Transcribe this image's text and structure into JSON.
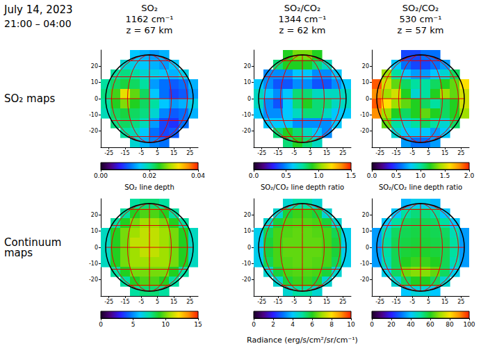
{
  "title": "July 14, 2023",
  "subtitle": "21:00 – 04:00",
  "row_labels": [
    "SO₂ maps",
    "Continuum maps"
  ],
  "colorbar_label": "Radiance (erg/s/cm²/sr/cm⁻¹)",
  "chart_data": [
    {
      "type": "heatmap",
      "header": [
        "SO₂",
        "1162 cm⁻¹",
        "z = 67 km"
      ],
      "xlim": [
        -30,
        30
      ],
      "xticks": [
        -25,
        -15,
        -5,
        5,
        15,
        25
      ],
      "ylim": [
        -30,
        30
      ],
      "yticks": [
        -20,
        -10,
        0,
        10,
        20
      ],
      "x": [
        -27,
        -21,
        -15,
        -9,
        -3,
        3,
        9,
        15,
        21,
        27
      ],
      "y": [
        27,
        21,
        15,
        9,
        3,
        -3,
        -9,
        -15,
        -21,
        -27
      ],
      "cells": [
        [
          null,
          null,
          null,
          0.016,
          0.015,
          0.014,
          0.015,
          null,
          null,
          null
        ],
        [
          null,
          null,
          0.018,
          0.017,
          0.016,
          0.015,
          0.014,
          0.016,
          null,
          null
        ],
        [
          null,
          0.02,
          0.021,
          0.02,
          0.018,
          0.017,
          0.016,
          0.015,
          0.017,
          null
        ],
        [
          0.02,
          0.022,
          0.023,
          0.022,
          0.02,
          0.014,
          0.012,
          0.011,
          0.012,
          0.015
        ],
        [
          0.021,
          0.025,
          0.031,
          0.026,
          0.022,
          0.016,
          0.012,
          0.01,
          0.011,
          0.014
        ],
        [
          0.02,
          0.024,
          0.027,
          0.024,
          0.022,
          0.02,
          0.016,
          0.014,
          0.015,
          0.017
        ],
        [
          0.019,
          0.022,
          0.023,
          0.022,
          0.021,
          0.018,
          0.013,
          0.011,
          0.012,
          0.015
        ],
        [
          null,
          0.021,
          0.022,
          0.021,
          0.019,
          0.014,
          0.01,
          0.009,
          0.012,
          null
        ],
        [
          null,
          null,
          0.02,
          0.019,
          0.016,
          0.012,
          0.01,
          0.011,
          null,
          null
        ],
        [
          null,
          null,
          null,
          0.018,
          0.015,
          0.013,
          0.012,
          null,
          null,
          null
        ]
      ],
      "colorbar": {
        "range": [
          0,
          0.04
        ],
        "ticks": [
          {
            "value": 0,
            "label": "0.00"
          },
          0.02,
          0.04
        ],
        "label": "SO₂ line depth"
      }
    },
    {
      "type": "heatmap",
      "header": [
        "SO₂/CO₂",
        "1344 cm⁻¹",
        "z = 62 km"
      ],
      "xlim": [
        -30,
        30
      ],
      "xticks": [
        -25,
        -15,
        -5,
        5,
        15,
        25
      ],
      "ylim": [
        -30,
        30
      ],
      "yticks": [
        -20,
        -10,
        0,
        10,
        20
      ],
      "x": [
        -27,
        -21,
        -15,
        -9,
        -3,
        3,
        9,
        15,
        21,
        27
      ],
      "y": [
        27,
        21,
        15,
        9,
        3,
        -3,
        -9,
        -15,
        -21,
        -27
      ],
      "cells": [
        [
          null,
          null,
          null,
          0.9,
          1.0,
          1.0,
          0.9,
          null,
          null,
          null
        ],
        [
          null,
          null,
          0.8,
          0.9,
          0.9,
          0.9,
          0.8,
          0.7,
          null,
          null
        ],
        [
          null,
          0.5,
          0.5,
          0.5,
          0.6,
          0.6,
          0.5,
          0.5,
          0.6,
          null
        ],
        [
          0.6,
          0.5,
          0.4,
          0.4,
          0.5,
          0.5,
          0.4,
          0.4,
          0.5,
          0.6
        ],
        [
          0.7,
          0.6,
          0.5,
          0.6,
          0.8,
          0.8,
          0.7,
          0.7,
          0.7,
          0.7
        ],
        [
          0.7,
          0.5,
          0.4,
          0.6,
          0.8,
          0.9,
          0.8,
          0.8,
          0.7,
          0.7
        ],
        [
          0.6,
          0.5,
          0.5,
          0.6,
          0.7,
          0.8,
          0.8,
          0.7,
          0.6,
          0.6
        ],
        [
          null,
          0.6,
          0.6,
          0.6,
          0.5,
          0.5,
          0.5,
          0.5,
          0.6,
          null
        ],
        [
          null,
          null,
          0.8,
          0.9,
          0.8,
          0.7,
          0.6,
          0.5,
          null,
          null
        ],
        [
          null,
          null,
          null,
          0.8,
          0.9,
          0.8,
          0.7,
          null,
          null,
          null
        ]
      ],
      "colorbar": {
        "range": [
          0,
          1.5
        ],
        "ticks": [
          {
            "value": 0,
            "label": "0.0"
          },
          0.5,
          {
            "value": 1,
            "label": "1.0"
          },
          1.5
        ],
        "label": "SO₂/CO₂ line depth ratio"
      }
    },
    {
      "type": "heatmap",
      "header": [
        "SO₂/CO₂",
        "530 cm⁻¹",
        "z = 57 km"
      ],
      "xlim": [
        -30,
        30
      ],
      "xticks": [
        -25,
        -15,
        -5,
        5,
        15,
        25
      ],
      "ylim": [
        -30,
        30
      ],
      "yticks": [
        -20,
        -10,
        0,
        10,
        20
      ],
      "x": [
        -27,
        -21,
        -15,
        -9,
        -3,
        3,
        9,
        15,
        21,
        27
      ],
      "y": [
        27,
        21,
        15,
        9,
        3,
        -3,
        -9,
        -15,
        -21,
        -27
      ],
      "cells": [
        [
          null,
          null,
          null,
          0.5,
          0.5,
          0.6,
          0.6,
          null,
          null,
          null
        ],
        [
          null,
          null,
          0.8,
          0.6,
          0.5,
          0.5,
          0.6,
          0.7,
          null,
          null
        ],
        [
          null,
          1.4,
          1.0,
          0.8,
          0.7,
          0.7,
          0.8,
          0.9,
          1.1,
          null
        ],
        [
          1.9,
          1.5,
          1.3,
          1.1,
          1.0,
          1.0,
          1.1,
          1.2,
          1.3,
          1.6
        ],
        [
          1.8,
          1.4,
          1.5,
          1.2,
          0.9,
          1.0,
          1.2,
          1.4,
          1.3,
          1.5
        ],
        [
          1.9,
          1.6,
          1.4,
          1.3,
          1.2,
          1.1,
          1.0,
          1.1,
          1.2,
          1.5
        ],
        [
          1.8,
          1.4,
          1.2,
          1.1,
          1.2,
          1.3,
          1.2,
          1.1,
          1.2,
          1.4
        ],
        [
          null,
          1.3,
          1.0,
          0.9,
          1.0,
          1.1,
          1.0,
          0.9,
          1.1,
          null
        ],
        [
          null,
          null,
          0.9,
          0.8,
          0.8,
          0.8,
          0.7,
          0.8,
          null,
          null
        ],
        [
          null,
          null,
          null,
          0.7,
          0.6,
          0.6,
          0.7,
          null,
          null,
          null
        ]
      ],
      "colorbar": {
        "range": [
          0,
          2
        ],
        "ticks": [
          {
            "value": 0,
            "label": "0.0"
          },
          0.5,
          {
            "value": 1,
            "label": "1.0"
          },
          1.5,
          {
            "value": 2,
            "label": "2.0"
          }
        ],
        "label": "SO₂/CO₂ line depth ratio"
      }
    },
    {
      "type": "heatmap",
      "xlim": [
        -30,
        30
      ],
      "xticks": [
        -25,
        -15,
        -5,
        5,
        15,
        25
      ],
      "ylim": [
        -30,
        30
      ],
      "yticks": [
        -20,
        -10,
        0,
        10,
        20
      ],
      "x": [
        -27,
        -21,
        -15,
        -9,
        -3,
        3,
        9,
        15,
        21,
        27
      ],
      "y": [
        27,
        21,
        15,
        9,
        3,
        -3,
        -9,
        -15,
        -21,
        -27
      ],
      "cells": [
        [
          null,
          null,
          null,
          7.5,
          8,
          8,
          7.5,
          null,
          null,
          null
        ],
        [
          null,
          null,
          7.5,
          9,
          9.5,
          9.5,
          9,
          7.5,
          null,
          null
        ],
        [
          null,
          7.5,
          9,
          10,
          10.5,
          10.5,
          10,
          9,
          7.5,
          null
        ],
        [
          7,
          9,
          10,
          10.5,
          11,
          11,
          10.5,
          10,
          9,
          7
        ],
        [
          7,
          9,
          10,
          11,
          11,
          11,
          10.5,
          10,
          9,
          7
        ],
        [
          7,
          9,
          10,
          10.5,
          11,
          11,
          10.5,
          10,
          9,
          7
        ],
        [
          7,
          9,
          10,
          10.5,
          10.5,
          10.5,
          10.5,
          10,
          9,
          7
        ],
        [
          null,
          7.5,
          9,
          10,
          10,
          10,
          10,
          9,
          7.5,
          null
        ],
        [
          null,
          null,
          7.5,
          9,
          9.5,
          9.5,
          9,
          7.5,
          null,
          null
        ],
        [
          null,
          null,
          null,
          7.5,
          8,
          8,
          7.5,
          null,
          null,
          null
        ]
      ],
      "colorbar": {
        "range": [
          0,
          15
        ],
        "ticks": [
          0,
          5,
          10,
          15
        ]
      }
    },
    {
      "type": "heatmap",
      "xlim": [
        -30,
        30
      ],
      "xticks": [
        -25,
        -15,
        -5,
        5,
        15,
        25
      ],
      "ylim": [
        -30,
        30
      ],
      "yticks": [
        -20,
        -10,
        0,
        10,
        20
      ],
      "x": [
        -27,
        -21,
        -15,
        -9,
        -3,
        3,
        9,
        15,
        21,
        27
      ],
      "y": [
        27,
        21,
        15,
        9,
        3,
        -3,
        -9,
        -15,
        -21,
        -27
      ],
      "cells": [
        [
          null,
          null,
          null,
          4.5,
          5,
          5,
          4.5,
          null,
          null,
          null
        ],
        [
          null,
          null,
          4.5,
          5.8,
          6.2,
          6.2,
          5.8,
          4.5,
          null,
          null
        ],
        [
          null,
          4.5,
          5.8,
          6.3,
          6.4,
          6.4,
          6.3,
          5.8,
          4.5,
          null
        ],
        [
          4.2,
          5.6,
          6.3,
          6.4,
          6.5,
          6.5,
          6.4,
          6.3,
          5.6,
          4.2
        ],
        [
          4.2,
          5.8,
          6.3,
          6.5,
          6.5,
          6.5,
          6.5,
          6.3,
          5.8,
          4.2
        ],
        [
          4.2,
          5.8,
          6.3,
          6.5,
          6.5,
          6.5,
          6.5,
          6.3,
          5.8,
          4.2
        ],
        [
          4.2,
          5.6,
          6.3,
          6.4,
          6.5,
          6.5,
          6.4,
          6.3,
          5.6,
          4.2
        ],
        [
          null,
          4.5,
          5.8,
          6.3,
          6.4,
          6.4,
          6.3,
          5.8,
          4.5,
          null
        ],
        [
          null,
          null,
          4.5,
          5.8,
          6.2,
          6.2,
          5.8,
          4.5,
          null,
          null
        ],
        [
          null,
          null,
          null,
          4.5,
          5,
          5,
          4.5,
          null,
          null,
          null
        ]
      ],
      "colorbar": {
        "range": [
          0,
          10
        ],
        "ticks": [
          0,
          2,
          4,
          6,
          8,
          10
        ]
      }
    },
    {
      "type": "heatmap",
      "xlim": [
        -30,
        30
      ],
      "xticks": [
        -25,
        -15,
        -5,
        5,
        15,
        25
      ],
      "ylim": [
        -30,
        30
      ],
      "yticks": [
        -20,
        -10,
        0,
        10,
        20
      ],
      "x": [
        -27,
        -21,
        -15,
        -9,
        -3,
        3,
        9,
        15,
        21,
        27
      ],
      "y": [
        27,
        21,
        15,
        9,
        3,
        -3,
        -9,
        -15,
        -21,
        -27
      ],
      "cells": [
        [
          null,
          null,
          null,
          38,
          42,
          42,
          38,
          null,
          null,
          null
        ],
        [
          null,
          null,
          40,
          50,
          53,
          53,
          50,
          40,
          null,
          null
        ],
        [
          null,
          40,
          50,
          55,
          56,
          56,
          55,
          50,
          40,
          null
        ],
        [
          35,
          48,
          55,
          56,
          57,
          57,
          56,
          55,
          48,
          35
        ],
        [
          35,
          50,
          56,
          57,
          58,
          58,
          57,
          56,
          50,
          35
        ],
        [
          35,
          50,
          56,
          58,
          59,
          59,
          58,
          56,
          50,
          35
        ],
        [
          35,
          48,
          56,
          60,
          62,
          62,
          60,
          56,
          48,
          35
        ],
        [
          null,
          42,
          55,
          66,
          68,
          68,
          65,
          55,
          42,
          null
        ],
        [
          null,
          null,
          45,
          55,
          60,
          60,
          55,
          45,
          null,
          null
        ],
        [
          null,
          null,
          null,
          40,
          44,
          44,
          40,
          null,
          null,
          null
        ]
      ],
      "colorbar": {
        "range": [
          0,
          100
        ],
        "ticks": [
          0,
          20,
          40,
          60,
          80,
          100
        ]
      }
    }
  ]
}
